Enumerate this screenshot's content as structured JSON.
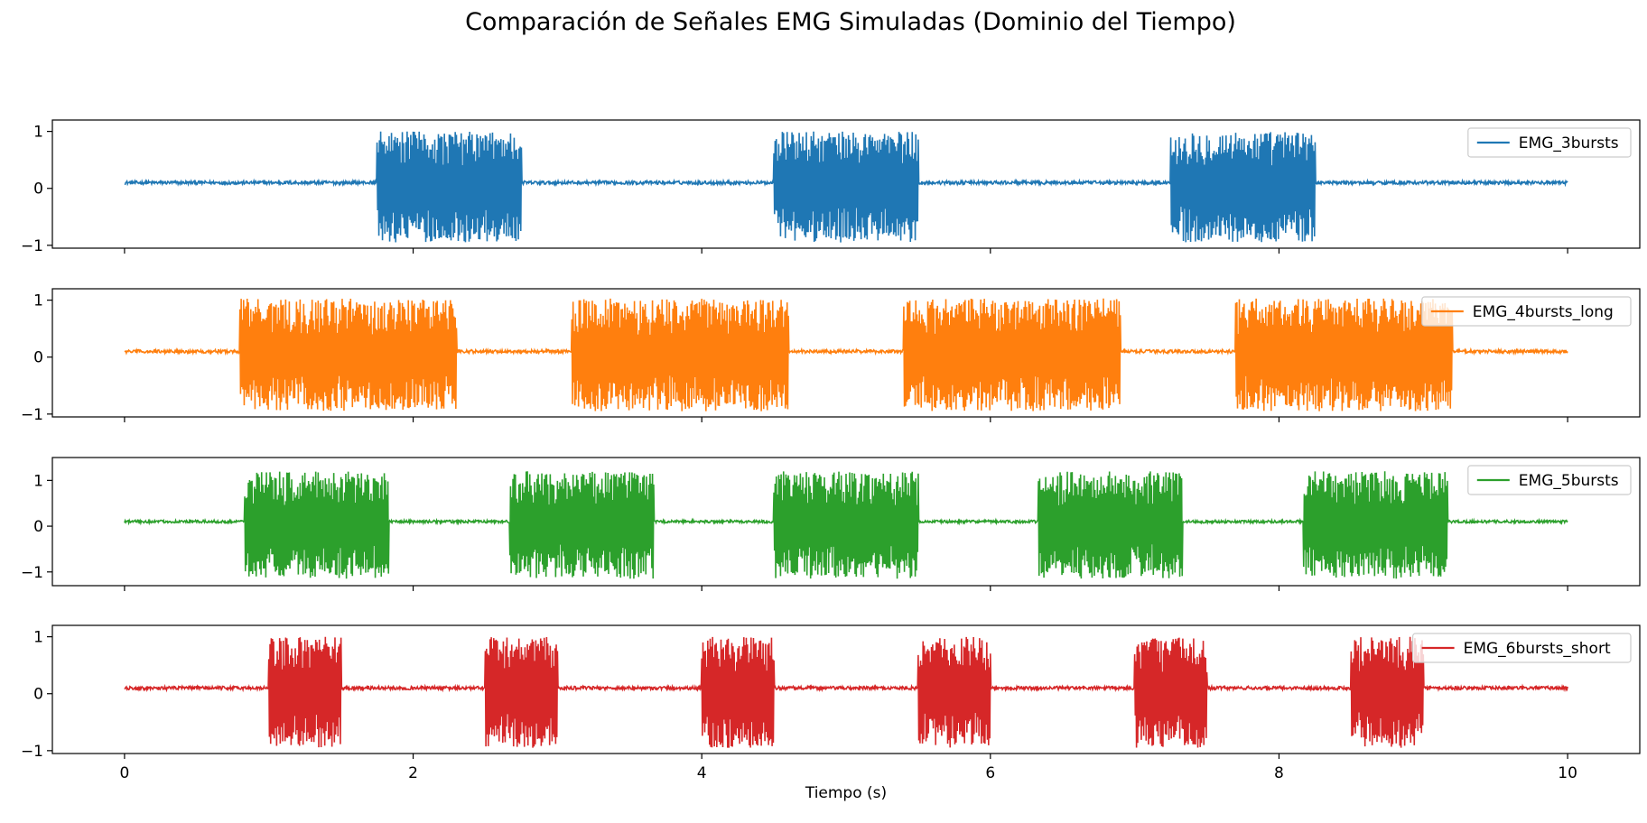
{
  "chart_data": {
    "type": "line",
    "title": "Comparación de Señales EMG Simuladas (Dominio del Tiempo)",
    "xlabel": "Tiempo (s)",
    "xlim": [
      -0.5,
      10.5
    ],
    "xticks": [
      0,
      2,
      4,
      6,
      8,
      10
    ],
    "grid": false,
    "legend_position": "upper right",
    "subplots": [
      {
        "name": "EMG_3bursts",
        "color": "#1f77b4",
        "ylim": [
          -1.05,
          1.2
        ],
        "yticks": [
          -1,
          0,
          1
        ],
        "baseline": 0.1,
        "baseline_noise": 0.03,
        "burst_amplitude": [
          -0.9,
          1.05
        ],
        "bursts": [
          [
            1.75,
            2.75
          ],
          [
            4.5,
            5.5
          ],
          [
            7.25,
            8.25
          ]
        ],
        "x_range": [
          0,
          10
        ]
      },
      {
        "name": "EMG_4bursts_long",
        "color": "#ff7f0e",
        "ylim": [
          -1.05,
          1.2
        ],
        "yticks": [
          -1,
          0,
          1
        ],
        "baseline": 0.1,
        "baseline_noise": 0.03,
        "burst_amplitude": [
          -0.9,
          1.08
        ],
        "bursts": [
          [
            0.8,
            2.3
          ],
          [
            3.1,
            4.6
          ],
          [
            5.4,
            6.9
          ],
          [
            7.7,
            9.2
          ]
        ],
        "x_range": [
          0,
          10
        ]
      },
      {
        "name": "EMG_5bursts",
        "color": "#2ca02c",
        "ylim": [
          -1.3,
          1.5
        ],
        "yticks": [
          -1,
          0,
          1
        ],
        "baseline": 0.1,
        "baseline_noise": 0.03,
        "burst_amplitude": [
          -1.1,
          1.25
        ],
        "bursts": [
          [
            0.83,
            1.83
          ],
          [
            2.67,
            3.67
          ],
          [
            4.5,
            5.5
          ],
          [
            6.33,
            7.33
          ],
          [
            8.17,
            9.17
          ]
        ],
        "x_range": [
          0,
          10
        ]
      },
      {
        "name": "EMG_6bursts_short",
        "color": "#d62728",
        "ylim": [
          -1.05,
          1.2
        ],
        "yticks": [
          -1,
          0,
          1
        ],
        "baseline": 0.1,
        "baseline_noise": 0.03,
        "burst_amplitude": [
          -0.9,
          1.05
        ],
        "bursts": [
          [
            1.0,
            1.5
          ],
          [
            2.5,
            3.0
          ],
          [
            4.0,
            4.5
          ],
          [
            5.5,
            6.0
          ],
          [
            7.0,
            7.5
          ],
          [
            8.5,
            9.0
          ]
        ],
        "x_range": [
          0,
          10
        ]
      }
    ]
  }
}
